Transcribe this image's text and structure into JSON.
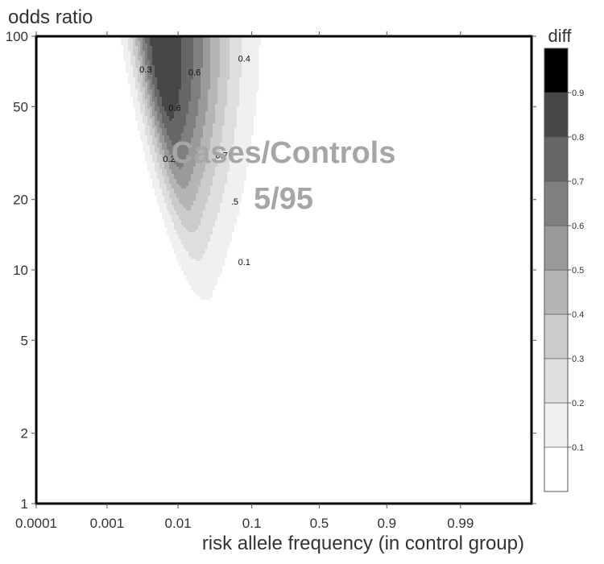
{
  "chart_data": {
    "type": "heatmap",
    "subtype": "filled-contour",
    "title": "",
    "annotation_lines": [
      "Cases/Controls",
      "5/95"
    ],
    "xlabel": "risk allele frequency (in control group)",
    "ylabel": "odds ratio",
    "x_scale": "logit",
    "y_scale": "log",
    "xlim": [
      0.0001,
      0.999
    ],
    "ylim": [
      1,
      100
    ],
    "x_ticks": [
      0.0001,
      0.001,
      0.01,
      0.1,
      0.5,
      0.9,
      0.99
    ],
    "x_tick_labels": [
      "0.0001",
      "0.001",
      "0.01",
      "0.1",
      "0.5",
      "0.9",
      "0.99"
    ],
    "y_ticks": [
      1,
      2,
      5,
      10,
      20,
      50,
      100
    ],
    "y_tick_labels": [
      "1",
      "2",
      "5",
      "10",
      "20",
      "50",
      "100"
    ],
    "colorbar": {
      "title": "diff",
      "levels": [
        0,
        0.1,
        0.2,
        0.3,
        0.4,
        0.5,
        0.6,
        0.7,
        0.8,
        0.9,
        1.0
      ],
      "tick_values": [
        0.1,
        0.2,
        0.3,
        0.4,
        0.5,
        0.6,
        0.7,
        0.8,
        0.9
      ],
      "tick_labels": [
        "0.1",
        "0.2",
        "0.3",
        "0.4",
        "0.5",
        "0.6",
        "0.7",
        "0.8",
        "0.9"
      ],
      "colors": [
        "#ffffff",
        "#f0f0f0",
        "#dedede",
        "#cbcbcb",
        "#b5b5b5",
        "#9a9a9a",
        "#7f7f7f",
        "#666666",
        "#474747",
        "#262626",
        "#000000"
      ]
    },
    "peak": {
      "x": 0.006,
      "y": 70,
      "value": 0.88
    },
    "contour_labels": [
      {
        "text": "0.4",
        "x": 0.08,
        "y": 78
      },
      {
        "text": "0.3",
        "x": 0.0035,
        "y": 70
      },
      {
        "text": "0.6",
        "x": 0.017,
        "y": 68
      },
      {
        "text": "0.6",
        "x": 0.009,
        "y": 48
      },
      {
        "text": "0.2",
        "x": 0.0075,
        "y": 29
      },
      {
        "text": "0.7",
        "x": 0.04,
        "y": 30
      },
      {
        "text": ".5",
        "x": 0.06,
        "y": 19
      },
      {
        "text": "0.1",
        "x": 0.08,
        "y": 10.5
      }
    ]
  }
}
